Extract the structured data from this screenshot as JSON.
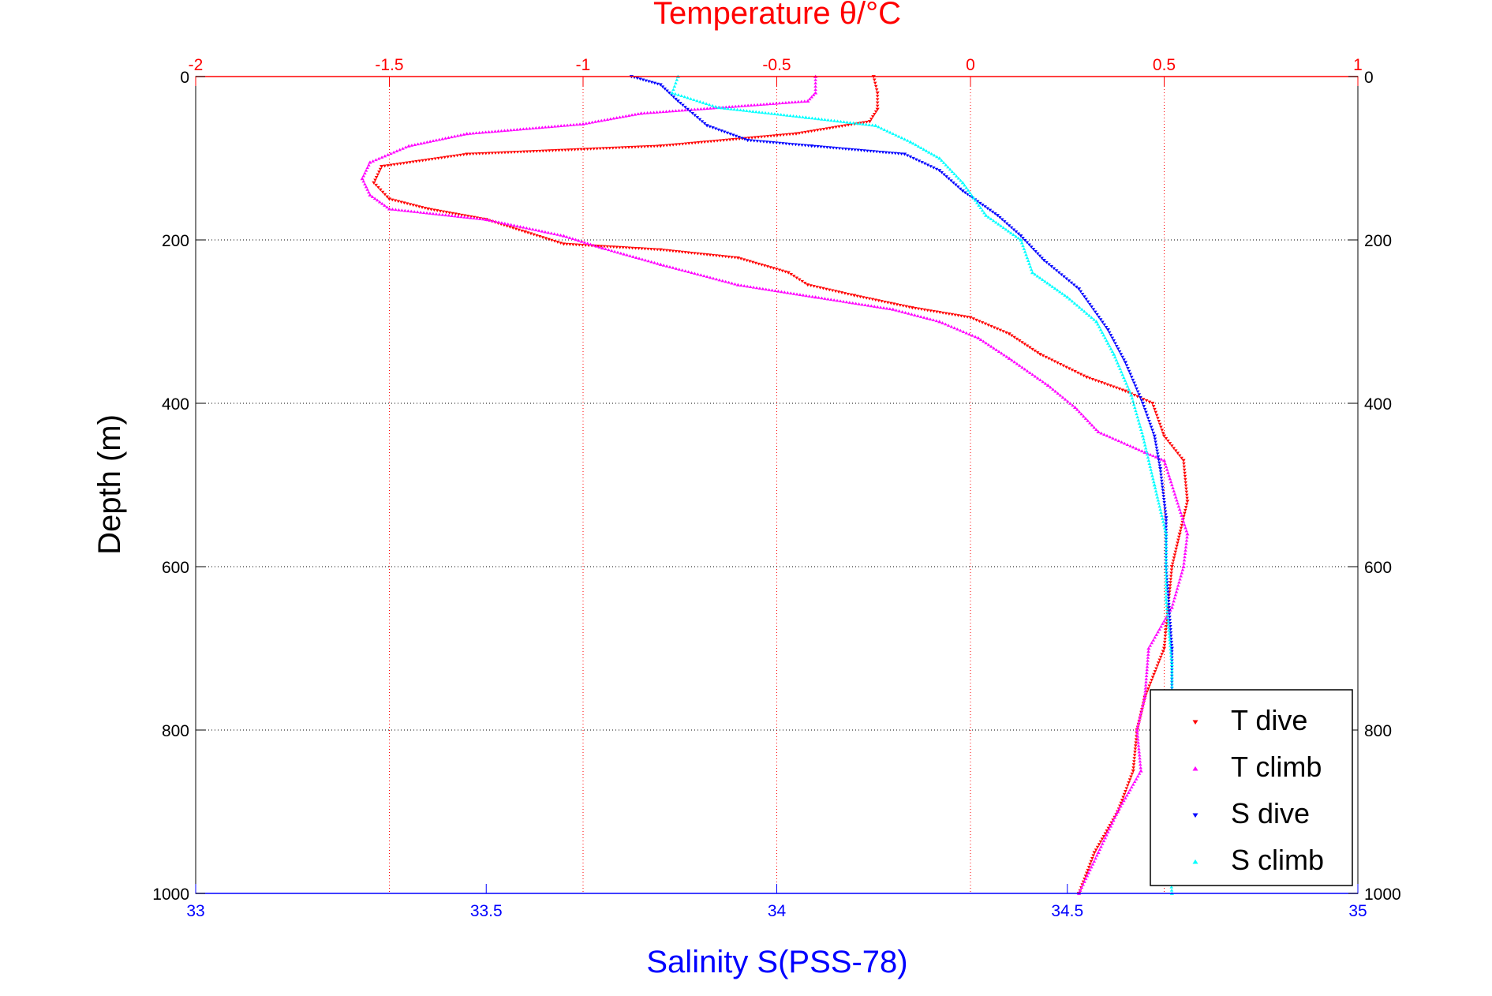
{
  "chart_data": {
    "type": "scatter",
    "title": "",
    "top_axis": {
      "label": "Temperature θ/°C",
      "range": [
        -2,
        1
      ],
      "ticks": [
        -2,
        -1.5,
        -1,
        -0.5,
        0,
        0.5,
        1
      ],
      "tick_labels": [
        "-2",
        "-1.5",
        "-1",
        "-0.5",
        "0",
        "0.5",
        "1"
      ],
      "color": "#ff0000"
    },
    "bottom_axis": {
      "label": "Salinity S(PSS-78)",
      "range": [
        33,
        35
      ],
      "ticks": [
        33,
        33.5,
        34,
        34.5,
        35
      ],
      "tick_labels": [
        "33",
        "33.5",
        "34",
        "34.5",
        "35"
      ],
      "color": "#0000ff"
    },
    "y_axis": {
      "label": "Depth (m)",
      "range": [
        0,
        1000
      ],
      "reversed": true,
      "ticks": [
        0,
        200,
        400,
        600,
        800,
        1000
      ],
      "tick_labels": [
        "0",
        "200",
        "400",
        "600",
        "800",
        "1000"
      ]
    },
    "grid": true,
    "legend_position": "bottom-right",
    "series": [
      {
        "name": "T dive",
        "axis": "temperature",
        "color": "#ff0000",
        "marker": "triangle-down",
        "points": [
          [
            -0.25,
            0
          ],
          [
            -0.24,
            20
          ],
          [
            -0.24,
            40
          ],
          [
            -0.26,
            55
          ],
          [
            -0.45,
            70
          ],
          [
            -0.8,
            85
          ],
          [
            -1.3,
            95
          ],
          [
            -1.52,
            110
          ],
          [
            -1.54,
            130
          ],
          [
            -1.5,
            150
          ],
          [
            -1.4,
            162
          ],
          [
            -1.25,
            175
          ],
          [
            -1.15,
            190
          ],
          [
            -1.05,
            205
          ],
          [
            -0.8,
            212
          ],
          [
            -0.6,
            222
          ],
          [
            -0.47,
            240
          ],
          [
            -0.42,
            255
          ],
          [
            -0.3,
            268
          ],
          [
            -0.15,
            283
          ],
          [
            0,
            295
          ],
          [
            0.1,
            315
          ],
          [
            0.18,
            340
          ],
          [
            0.3,
            368
          ],
          [
            0.4,
            385
          ],
          [
            0.47,
            400
          ],
          [
            0.5,
            440
          ],
          [
            0.55,
            470
          ],
          [
            0.56,
            520
          ],
          [
            0.54,
            560
          ],
          [
            0.52,
            600
          ],
          [
            0.51,
            650
          ],
          [
            0.5,
            700
          ],
          [
            0.45,
            760
          ],
          [
            0.43,
            800
          ],
          [
            0.42,
            850
          ],
          [
            0.38,
            900
          ],
          [
            0.32,
            950
          ],
          [
            0.28,
            1000
          ]
        ]
      },
      {
        "name": "T climb",
        "axis": "temperature",
        "color": "#ff00ff",
        "marker": "triangle-up",
        "points": [
          [
            -0.4,
            0
          ],
          [
            -0.4,
            20
          ],
          [
            -0.42,
            30
          ],
          [
            -0.85,
            45
          ],
          [
            -1.0,
            58
          ],
          [
            -1.3,
            70
          ],
          [
            -1.45,
            85
          ],
          [
            -1.55,
            105
          ],
          [
            -1.57,
            125
          ],
          [
            -1.55,
            145
          ],
          [
            -1.5,
            162
          ],
          [
            -1.25,
            175
          ],
          [
            -1.05,
            195
          ],
          [
            -0.95,
            210
          ],
          [
            -0.8,
            230
          ],
          [
            -0.6,
            255
          ],
          [
            -0.4,
            270
          ],
          [
            -0.2,
            285
          ],
          [
            -0.08,
            300
          ],
          [
            0.02,
            320
          ],
          [
            0.1,
            345
          ],
          [
            0.2,
            378
          ],
          [
            0.27,
            405
          ],
          [
            0.33,
            435
          ],
          [
            0.45,
            460
          ],
          [
            0.5,
            470
          ],
          [
            0.56,
            560
          ],
          [
            0.55,
            600
          ],
          [
            0.52,
            650
          ],
          [
            0.46,
            700
          ],
          [
            0.45,
            760
          ],
          [
            0.43,
            800
          ],
          [
            0.44,
            850
          ],
          [
            0.38,
            900
          ],
          [
            0.33,
            950
          ],
          [
            0.28,
            1000
          ]
        ]
      },
      {
        "name": "S dive",
        "axis": "salinity",
        "color": "#0000ff",
        "marker": "triangle-down",
        "points": [
          [
            33.75,
            0
          ],
          [
            33.8,
            10
          ],
          [
            33.83,
            30
          ],
          [
            33.88,
            60
          ],
          [
            33.95,
            78
          ],
          [
            34.06,
            85
          ],
          [
            34.22,
            95
          ],
          [
            34.28,
            115
          ],
          [
            34.32,
            140
          ],
          [
            34.38,
            170
          ],
          [
            34.42,
            195
          ],
          [
            34.46,
            225
          ],
          [
            34.52,
            260
          ],
          [
            34.57,
            310
          ],
          [
            34.6,
            350
          ],
          [
            34.63,
            400
          ],
          [
            34.65,
            440
          ],
          [
            34.66,
            480
          ],
          [
            34.67,
            540
          ],
          [
            34.67,
            600
          ],
          [
            34.68,
            700
          ],
          [
            34.68,
            760
          ]
        ]
      },
      {
        "name": "S climb",
        "axis": "salinity",
        "color": "#00ffff",
        "marker": "triangle-up",
        "points": [
          [
            33.83,
            0
          ],
          [
            33.82,
            20
          ],
          [
            33.9,
            38
          ],
          [
            34.05,
            50
          ],
          [
            34.17,
            60
          ],
          [
            34.23,
            80
          ],
          [
            34.28,
            100
          ],
          [
            34.32,
            130
          ],
          [
            34.36,
            170
          ],
          [
            34.42,
            200
          ],
          [
            34.44,
            240
          ],
          [
            34.5,
            270
          ],
          [
            34.55,
            300
          ],
          [
            34.58,
            340
          ],
          [
            34.61,
            390
          ],
          [
            34.63,
            440
          ],
          [
            34.65,
            500
          ],
          [
            34.67,
            560
          ],
          [
            34.67,
            640
          ],
          [
            34.68,
            720
          ],
          [
            34.68,
            800
          ],
          [
            34.67,
            900
          ],
          [
            34.68,
            1000
          ]
        ]
      }
    ]
  }
}
